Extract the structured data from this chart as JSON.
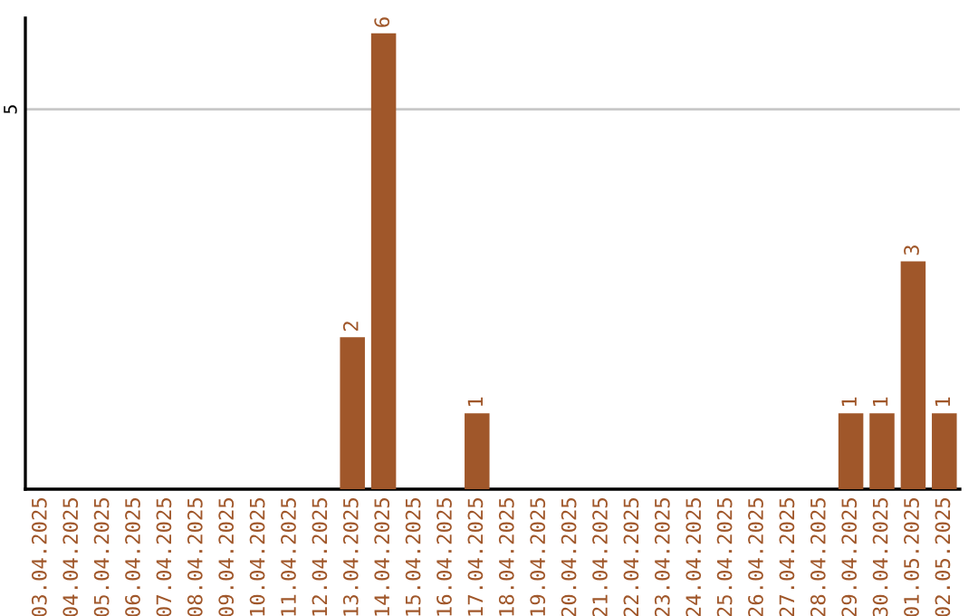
{
  "chart_data": {
    "type": "bar",
    "categories": [
      "03.04.2025",
      "04.04.2025",
      "05.04.2025",
      "06.04.2025",
      "07.04.2025",
      "08.04.2025",
      "09.04.2025",
      "10.04.2025",
      "11.04.2025",
      "12.04.2025",
      "13.04.2025",
      "14.04.2025",
      "15.04.2025",
      "16.04.2025",
      "17.04.2025",
      "18.04.2025",
      "19.04.2025",
      "20.04.2025",
      "21.04.2025",
      "22.04.2025",
      "23.04.2025",
      "24.04.2025",
      "25.04.2025",
      "26.04.2025",
      "27.04.2025",
      "28.04.2025",
      "29.04.2025",
      "30.04.2025",
      "01.05.2025",
      "02.05.2025"
    ],
    "values": [
      0,
      0,
      0,
      0,
      0,
      0,
      0,
      0,
      0,
      0,
      2,
      6,
      0,
      0,
      1,
      0,
      0,
      0,
      0,
      0,
      0,
      0,
      0,
      0,
      0,
      0,
      1,
      1,
      3,
      1
    ],
    "value_labels": [
      null,
      null,
      null,
      null,
      null,
      null,
      null,
      null,
      null,
      null,
      "2",
      "6",
      null,
      null,
      "1",
      null,
      null,
      null,
      null,
      null,
      null,
      null,
      null,
      null,
      null,
      null,
      "1",
      "1",
      "3",
      "1"
    ],
    "color": "#a0572a",
    "ylim": [
      0,
      6.2
    ],
    "yticks": [
      5
    ],
    "grid": "y"
  }
}
